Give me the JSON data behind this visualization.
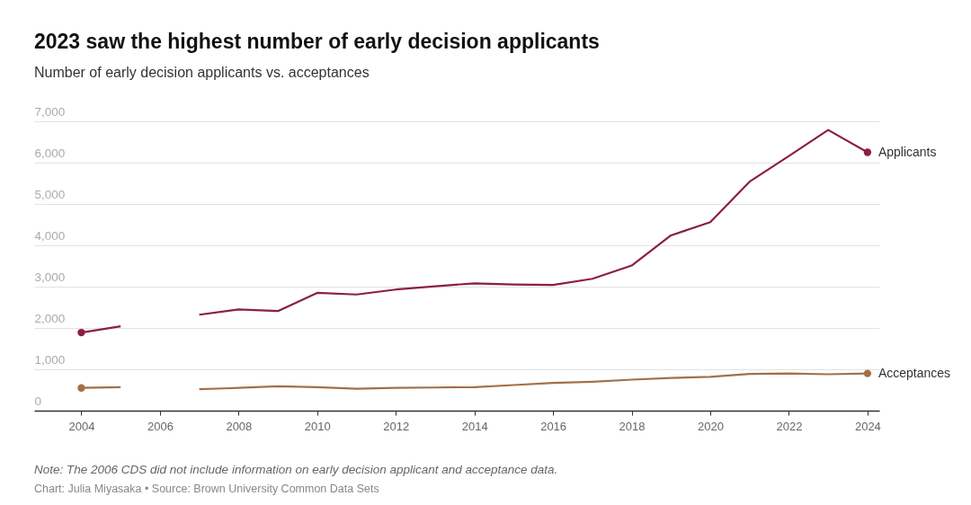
{
  "chart_data": {
    "type": "line",
    "title": "2023 saw the highest number of early decision applicants",
    "subtitle": "Number of early decision applicants vs. acceptances",
    "x": [
      2004,
      2005,
      2006,
      2007,
      2008,
      2009,
      2010,
      2011,
      2012,
      2013,
      2014,
      2015,
      2016,
      2017,
      2018,
      2019,
      2020,
      2021,
      2022,
      2023,
      2024
    ],
    "series": [
      {
        "name": "Applicants",
        "color": "#8b1e48",
        "values": [
          1890,
          2040,
          null,
          2320,
          2450,
          2410,
          2850,
          2810,
          2930,
          3010,
          3080,
          3050,
          3040,
          3190,
          3510,
          4240,
          4560,
          5540,
          6160,
          6790,
          6250
        ]
      },
      {
        "name": "Acceptances",
        "color": "#a56f46",
        "values": [
          550,
          570,
          null,
          520,
          550,
          590,
          570,
          530,
          550,
          560,
          570,
          620,
          670,
          700,
          750,
          790,
          820,
          890,
          900,
          880,
          900
        ]
      }
    ],
    "xlim": [
      2002.8,
      2024.3
    ],
    "xticks": [
      2004,
      2006,
      2008,
      2010,
      2012,
      2014,
      2016,
      2018,
      2020,
      2022,
      2024
    ],
    "ylim": [
      0,
      7000
    ],
    "yticks": [
      0,
      {
        "value": 1000,
        "label": "1,000"
      },
      {
        "value": 2000,
        "label": "2,000"
      },
      {
        "value": 3000,
        "label": "3,000"
      },
      {
        "value": 4000,
        "label": "4,000"
      },
      {
        "value": 5000,
        "label": "5,000"
      },
      {
        "value": 6000,
        "label": "6,000"
      },
      {
        "value": 7000,
        "label": "7,000"
      }
    ],
    "grid": "y",
    "legend": false,
    "annotations": [
      "Note: The 2006 CDS did not include information on early decision applicant and acceptance data.",
      "Chart: Julia Miyasaka • Source: Brown University Common Data Sets"
    ]
  }
}
